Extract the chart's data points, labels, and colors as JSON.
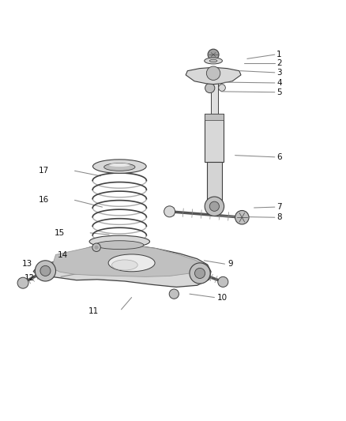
{
  "background_color": "#ffffff",
  "part_color": "#404040",
  "fill_light": "#d8d8d8",
  "fill_mid": "#c0c0c0",
  "fill_dark": "#a0a0a0",
  "label_color": "#111111",
  "leader_color": "#888888",
  "label_fontsize": 7.5,
  "figsize": [
    4.38,
    5.33
  ],
  "dpi": 100,
  "leader_data": {
    "1": {
      "line": [
        [
          0.795,
          0.952
        ],
        [
          0.715,
          0.94
        ]
      ],
      "lbl": [
        0.8,
        0.952
      ]
    },
    "2": {
      "line": [
        [
          0.795,
          0.927
        ],
        [
          0.706,
          0.927
        ]
      ],
      "lbl": [
        0.8,
        0.927
      ]
    },
    "3": {
      "line": [
        [
          0.795,
          0.9
        ],
        [
          0.695,
          0.905
        ]
      ],
      "lbl": [
        0.8,
        0.9
      ]
    },
    "4": {
      "line": [
        [
          0.795,
          0.87
        ],
        [
          0.65,
          0.872
        ]
      ],
      "lbl": [
        0.8,
        0.87
      ]
    },
    "5": {
      "line": [
        [
          0.795,
          0.843
        ],
        [
          0.64,
          0.845
        ]
      ],
      "lbl": [
        0.8,
        0.843
      ]
    },
    "6": {
      "line": [
        [
          0.795,
          0.655
        ],
        [
          0.68,
          0.66
        ]
      ],
      "lbl": [
        0.8,
        0.655
      ]
    },
    "7": {
      "line": [
        [
          0.795,
          0.51
        ],
        [
          0.735,
          0.508
        ]
      ],
      "lbl": [
        0.8,
        0.51
      ]
    },
    "8": {
      "line": [
        [
          0.795,
          0.48
        ],
        [
          0.63,
          0.483
        ]
      ],
      "lbl": [
        0.8,
        0.48
      ]
    },
    "9": {
      "line": [
        [
          0.65,
          0.345
        ],
        [
          0.59,
          0.355
        ]
      ],
      "lbl": [
        0.658,
        0.345
      ]
    },
    "10": {
      "line": [
        [
          0.62,
          0.248
        ],
        [
          0.548,
          0.258
        ]
      ],
      "lbl": [
        0.628,
        0.248
      ]
    },
    "11": {
      "line": [
        [
          0.35,
          0.213
        ],
        [
          0.38,
          0.248
        ]
      ],
      "lbl": [
        0.285,
        0.208
      ]
    },
    "12": {
      "line": [
        [
          0.175,
          0.308
        ],
        [
          0.225,
          0.317
        ]
      ],
      "lbl": [
        0.1,
        0.305
      ]
    },
    "13": {
      "line": [
        [
          0.165,
          0.345
        ],
        [
          0.26,
          0.368
        ]
      ],
      "lbl": [
        0.092,
        0.345
      ]
    },
    "14": {
      "line": [
        [
          0.27,
          0.372
        ],
        [
          0.285,
          0.382
        ]
      ],
      "lbl": [
        0.195,
        0.37
      ]
    },
    "15": {
      "line": [
        [
          0.26,
          0.435
        ],
        [
          0.315,
          0.43
        ]
      ],
      "lbl": [
        0.186,
        0.435
      ]
    },
    "16": {
      "line": [
        [
          0.215,
          0.53
        ],
        [
          0.295,
          0.51
        ]
      ],
      "lbl": [
        0.14,
        0.53
      ]
    },
    "17": {
      "line": [
        [
          0.215,
          0.615
        ],
        [
          0.29,
          0.6
        ]
      ],
      "lbl": [
        0.14,
        0.615
      ]
    }
  }
}
